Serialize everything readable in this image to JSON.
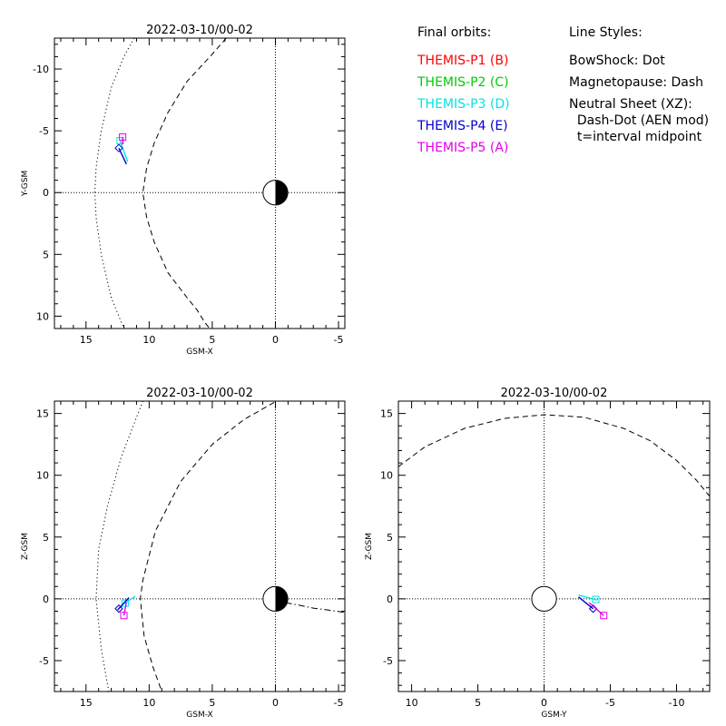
{
  "legend": {
    "orbits_title": "Final orbits:",
    "orbits": [
      {
        "label": "THEMIS-P1 (B)",
        "color": "#ff0000"
      },
      {
        "label": "THEMIS-P2 (C)",
        "color": "#00cc00"
      },
      {
        "label": "THEMIS-P3 (D)",
        "color": "#00e5e5"
      },
      {
        "label": "THEMIS-P4 (E)",
        "color": "#0000cc"
      },
      {
        "label": "THEMIS-P5 (A)",
        "color": "#e500e5"
      }
    ],
    "styles_title": "Line Styles:",
    "styles": [
      "BowShock: Dot",
      "Magnetopause: Dash",
      "Neutral Sheet (XZ):",
      "  Dash-Dot (AEN mod)",
      "  t=interval midpoint"
    ]
  },
  "chart_data": [
    {
      "id": "xy",
      "type": "line",
      "title": "2022-03-10/00-02",
      "xlabel": "GSM-X",
      "ylabel": "Y-GSM",
      "xlim": [
        17.5,
        -5.5
      ],
      "ylim": [
        11,
        -12.5
      ],
      "xticks": [
        15,
        10,
        5,
        0,
        -5
      ],
      "yticks": [
        -10,
        -5,
        0,
        5,
        10
      ],
      "xminor": 1,
      "yminor": 1,
      "earth": {
        "x": 0,
        "y": 0,
        "r": 1,
        "dark_side": "right"
      },
      "series": [
        {
          "style": "dot",
          "points": [
            [
              11.2,
              -12.5
            ],
            [
              12,
              -11
            ],
            [
              13,
              -8.5
            ],
            [
              13.8,
              -5
            ],
            [
              14.2,
              -2
            ],
            [
              14.3,
              0
            ],
            [
              14.2,
              2
            ],
            [
              13.8,
              5
            ],
            [
              13,
              8.5
            ],
            [
              12,
              11
            ]
          ]
        },
        {
          "style": "dash",
          "points": [
            [
              3.9,
              -12.5
            ],
            [
              5,
              -11.2
            ],
            [
              7,
              -9
            ],
            [
              8.5,
              -6.5
            ],
            [
              9.6,
              -4
            ],
            [
              10.2,
              -2
            ],
            [
              10.5,
              0
            ],
            [
              10.2,
              2
            ],
            [
              9.6,
              4
            ],
            [
              8.5,
              6.5
            ],
            [
              7,
              8.5
            ],
            [
              6.2,
              9.5
            ],
            [
              5.6,
              10.5
            ],
            [
              5.2,
              11
            ]
          ]
        },
        {
          "name": "THEMIS-P3 (D)",
          "color": "#00e5e5",
          "style": "solid",
          "points": [
            [
              12.3,
              -4.2
            ],
            [
              11.7,
              -2.5
            ]
          ],
          "marker": "square",
          "marker_at": [
            12.3,
            -4.2
          ]
        },
        {
          "name": "THEMIS-P4 (E)",
          "color": "#0000cc",
          "style": "solid",
          "points": [
            [
              12.4,
              -3.6
            ],
            [
              11.8,
              -2.3
            ]
          ],
          "marker": "diamond",
          "marker_at": [
            12.4,
            -3.6
          ]
        },
        {
          "name": "THEMIS-P5 (A)",
          "color": "#e500e5",
          "style": "solid",
          "points": [
            [
              12.1,
              -4.5
            ],
            [
              12.1,
              -3.9
            ]
          ],
          "marker": "square",
          "marker_at": [
            12.1,
            -4.5
          ]
        }
      ]
    },
    {
      "id": "xz",
      "type": "line",
      "title": "2022-03-10/00-02",
      "xlabel": "GSM-X",
      "ylabel": "Z-GSM",
      "xlim": [
        17.5,
        -5.5
      ],
      "ylim": [
        -7.5,
        16
      ],
      "xticks": [
        15,
        10,
        5,
        0,
        -5
      ],
      "yticks": [
        -5,
        0,
        5,
        10,
        15
      ],
      "xminor": 1,
      "yminor": 1,
      "earth": {
        "x": 0,
        "y": 0,
        "r": 1,
        "dark_side": "right"
      },
      "series": [
        {
          "style": "dot",
          "points": [
            [
              10.5,
              16
            ],
            [
              12.2,
              11.5
            ],
            [
              13.3,
              7.5
            ],
            [
              14,
              4
            ],
            [
              14.2,
              0
            ],
            [
              13.8,
              -4
            ],
            [
              13.2,
              -7.5
            ]
          ]
        },
        {
          "style": "dash",
          "points": [
            [
              0.1,
              15.9
            ],
            [
              2.5,
              14.5
            ],
            [
              5,
              12.5
            ],
            [
              7.5,
              9.5
            ],
            [
              9.5,
              5.5
            ],
            [
              10.5,
              1.5
            ],
            [
              10.7,
              0
            ],
            [
              10.4,
              -3
            ],
            [
              9.7,
              -5.5
            ],
            [
              9,
              -7.5
            ]
          ]
        },
        {
          "style": "dashdot",
          "points": [
            [
              -0.8,
              -0.3
            ],
            [
              -1.8,
              -0.5
            ],
            [
              -3,
              -0.75
            ],
            [
              -4.5,
              -0.95
            ],
            [
              -5.5,
              -1.1
            ]
          ]
        },
        {
          "name": "THEMIS-P3 (D)",
          "color": "#00e5e5",
          "style": "solid",
          "points": [
            [
              12,
              -0.4
            ],
            [
              11.1,
              0.2
            ]
          ],
          "marker": "square",
          "marker_at": [
            11.9,
            -0.35
          ]
        },
        {
          "name": "THEMIS-P4 (E)",
          "color": "#0000cc",
          "style": "solid",
          "points": [
            [
              12.5,
              -0.9
            ],
            [
              11.6,
              0.1
            ]
          ],
          "marker": "diamond",
          "marker_at": [
            12.4,
            -0.8
          ]
        },
        {
          "name": "THEMIS-P5 (A)",
          "color": "#e500e5",
          "style": "solid",
          "points": [
            [
              12,
              -1.35
            ],
            [
              11.8,
              -0.3
            ]
          ],
          "marker": "square",
          "marker_at": [
            12,
            -1.35
          ]
        }
      ]
    },
    {
      "id": "yz",
      "type": "line",
      "title": "2022-03-10/00-02",
      "xlabel": "GSM-Y",
      "ylabel": "Z-GSM",
      "xlim": [
        11,
        -12.5
      ],
      "ylim": [
        -7.5,
        16
      ],
      "xticks": [
        10,
        5,
        0,
        -5,
        -10
      ],
      "yticks": [
        -5,
        0,
        5,
        10,
        15
      ],
      "xminor": 1,
      "yminor": 1,
      "earth": {
        "x": 0,
        "y": 0,
        "r": 1,
        "dark_side": "none"
      },
      "series": [
        {
          "style": "dash",
          "points": [
            [
              11,
              10.7
            ],
            [
              9,
              12.3
            ],
            [
              6,
              13.8
            ],
            [
              3,
              14.6
            ],
            [
              0,
              14.9
            ],
            [
              -3,
              14.7
            ],
            [
              -6,
              13.8
            ],
            [
              -8,
              12.8
            ],
            [
              -10,
              11.2
            ],
            [
              -11.5,
              9.6
            ],
            [
              -12.5,
              8.3
            ]
          ]
        },
        {
          "name": "THEMIS-P3 (D)",
          "color": "#00e5e5",
          "style": "solid",
          "points": [
            [
              -2.6,
              0.3
            ],
            [
              -4,
              -0.1
            ]
          ],
          "marker": "square",
          "marker_at": [
            -3.9,
            -0.05
          ]
        },
        {
          "name": "THEMIS-P4 (E)",
          "color": "#0000cc",
          "style": "solid",
          "points": [
            [
              -2.6,
              0.15
            ],
            [
              -3.7,
              -0.8
            ]
          ],
          "marker": "diamond",
          "marker_at": [
            -3.7,
            -0.8
          ]
        },
        {
          "name": "THEMIS-P5 (A)",
          "color": "#e500e5",
          "style": "solid",
          "points": [
            [
              -3.4,
              -0.3
            ],
            [
              -4.5,
              -1.35
            ]
          ],
          "marker": "square",
          "marker_at": [
            -4.5,
            -1.35
          ]
        }
      ]
    }
  ]
}
